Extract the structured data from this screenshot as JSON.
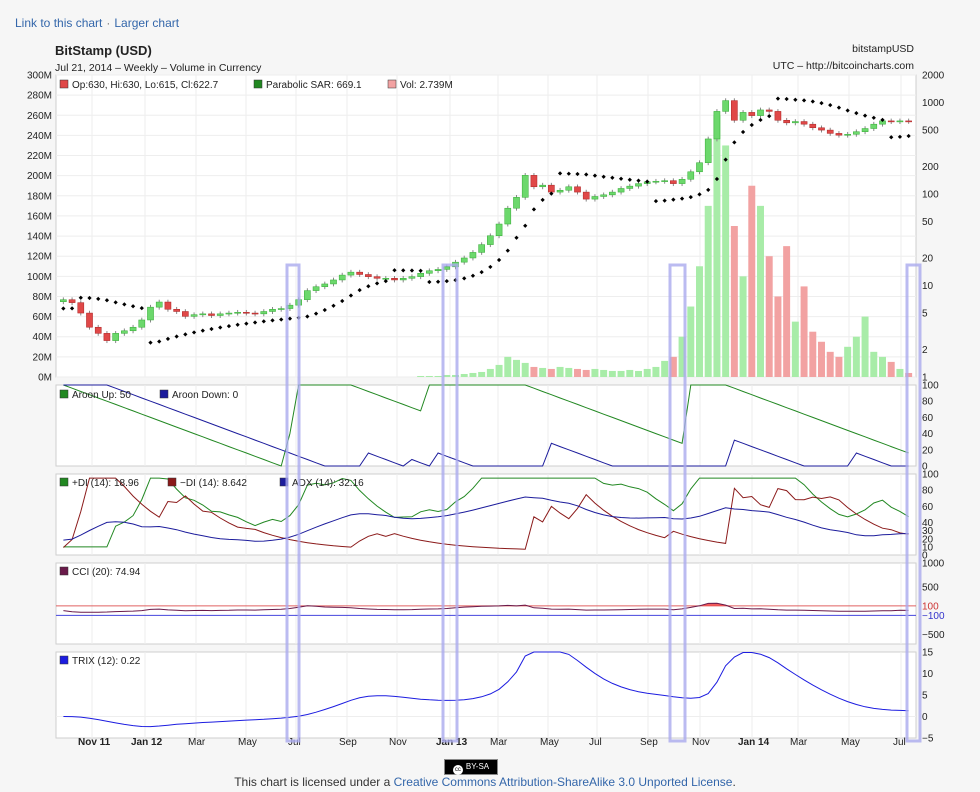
{
  "links": {
    "link_chart": "Link to this chart",
    "separator": "·",
    "larger": "Larger chart"
  },
  "header": {
    "title": "BitStamp (USD)",
    "subtitle": "Jul 21, 2014 – Weekly – Volume in Currency",
    "symbol": "bitstampUSD",
    "source": "UTC – http://bitcoincharts.com"
  },
  "legend_main": {
    "ohlc": "Op:630, Hi:630, Lo:615, Cl:622.7",
    "sar": "Parabolic SAR: 669.1",
    "vol": "Vol: 2.739M"
  },
  "colors": {
    "up": "#6cd86c",
    "down": "#e04848",
    "sar": "#000000",
    "vol_up": "#a8eca8",
    "vol_down": "#f2a2a2",
    "green": "#228822",
    "red": "#8b1a1a",
    "navy": "#1c1c9c",
    "blue": "#1c1ce0",
    "cci_fill": "#f04a4a",
    "highlight": "#aaaaee"
  },
  "x_labels": [
    "Nov 11",
    "Jan 12",
    "Mar",
    "May",
    "Jul",
    "Sep",
    "Nov",
    "Jan 13",
    "Mar",
    "May",
    "Jul",
    "Sep",
    "Nov",
    "Jan 14",
    "Mar",
    "May",
    "Jul"
  ],
  "bold_labels": [
    "Nov 11",
    "Jan 12",
    "Jan 13",
    "Jan 14"
  ],
  "left_axis_ticks": [
    "0M",
    "20M",
    "40M",
    "60M",
    "80M",
    "100M",
    "120M",
    "140M",
    "160M",
    "180M",
    "200M",
    "220M",
    "240M",
    "260M",
    "280M",
    "300M"
  ],
  "right_axis_ticks": [
    "1",
    "2",
    "5",
    "10",
    "20",
    "50",
    "100",
    "200",
    "500",
    "1000",
    "2000"
  ],
  "aroon": {
    "up_label": "Aroon Up: 50",
    "down_label": "Aroon Down: 0",
    "ticks": [
      "0",
      "20",
      "40",
      "60",
      "80",
      "100"
    ]
  },
  "dmi": {
    "pdi_label": "+DI (14): 18.96",
    "mdi_label": "−DI (14): 8.642",
    "adx_label": "ADX (14): 32.16",
    "ticks": [
      "0",
      "10",
      "20",
      "30",
      "40",
      "60",
      "80",
      "100"
    ]
  },
  "cci": {
    "label": "CCI (20): 74.94",
    "ticks": [
      "1000",
      "500",
      "100",
      "−100",
      "−500"
    ]
  },
  "trix": {
    "label": "TRIX (12): 0.22",
    "ticks": [
      "15",
      "10",
      "5",
      "0",
      "−5"
    ]
  },
  "license": {
    "prefix": "This chart is licensed under a ",
    "link": "Creative Commons Attribution-ShareAlike 3.0 Unported License",
    "suffix": ".",
    "badge": "BY-SA"
  },
  "chart_data": {
    "type": "candlestick",
    "title": "BitStamp (USD)",
    "period": "Weekly",
    "price_scale": "log",
    "price_axis": [
      1,
      2000
    ],
    "volume_axis": [
      0,
      300000000
    ],
    "price_close": [
      7,
      6.5,
      5,
      3.5,
      3,
      2.5,
      3,
      3.2,
      3.5,
      4.2,
      5.8,
      6.6,
      5.5,
      5.2,
      4.6,
      4.8,
      4.9,
      4.7,
      4.9,
      5.0,
      5.1,
      5.0,
      4.9,
      5.2,
      5.5,
      5.6,
      6.1,
      7.0,
      8.8,
      9.7,
      10.4,
      11.5,
      13.0,
      14.0,
      13.2,
      12.5,
      12.0,
      12.0,
      11.5,
      12.0,
      12.5,
      13.6,
      14.5,
      15.0,
      16.0,
      18.0,
      20.0,
      23.0,
      28.0,
      35.0,
      47.0,
      70.0,
      92.0,
      160.0,
      120.0,
      125.0,
      105.0,
      110.0,
      120.0,
      105.0,
      88.0,
      94.0,
      98.0,
      105.0,
      115.0,
      122.0,
      130.0,
      136.0,
      138.0,
      140.0,
      130.0,
      145.0,
      175.0,
      220.0,
      400.0,
      800.0,
      1050.0,
      640.0,
      780.0,
      720.0,
      830.0,
      800.0,
      640.0,
      600.0,
      620.0,
      580.0,
      530.0,
      500.0,
      460.0,
      440.0,
      450.0,
      480.0,
      520.0,
      580.0,
      630.0,
      620.0,
      630.0,
      622.7
    ],
    "volume_m": [
      0,
      0,
      0,
      0,
      0,
      0,
      0,
      0,
      0,
      0,
      0,
      0,
      0,
      0,
      0,
      0,
      0,
      0,
      0,
      0,
      0,
      0,
      0,
      0,
      0,
      0,
      0,
      0,
      0,
      0,
      0,
      0,
      0,
      0,
      0,
      0,
      0,
      0,
      0,
      0,
      0,
      1,
      1,
      1,
      2,
      2,
      3,
      4,
      5,
      8,
      12,
      20,
      17,
      14,
      10,
      9,
      8,
      10,
      9,
      8,
      7,
      8,
      7,
      6,
      6,
      7,
      6,
      8,
      10,
      16,
      20,
      40,
      70,
      110,
      170,
      260,
      230,
      150,
      100,
      190,
      170,
      120,
      80,
      130,
      55,
      90,
      45,
      35,
      25,
      20,
      30,
      40,
      60,
      25,
      20,
      15,
      8,
      4
    ]
  }
}
